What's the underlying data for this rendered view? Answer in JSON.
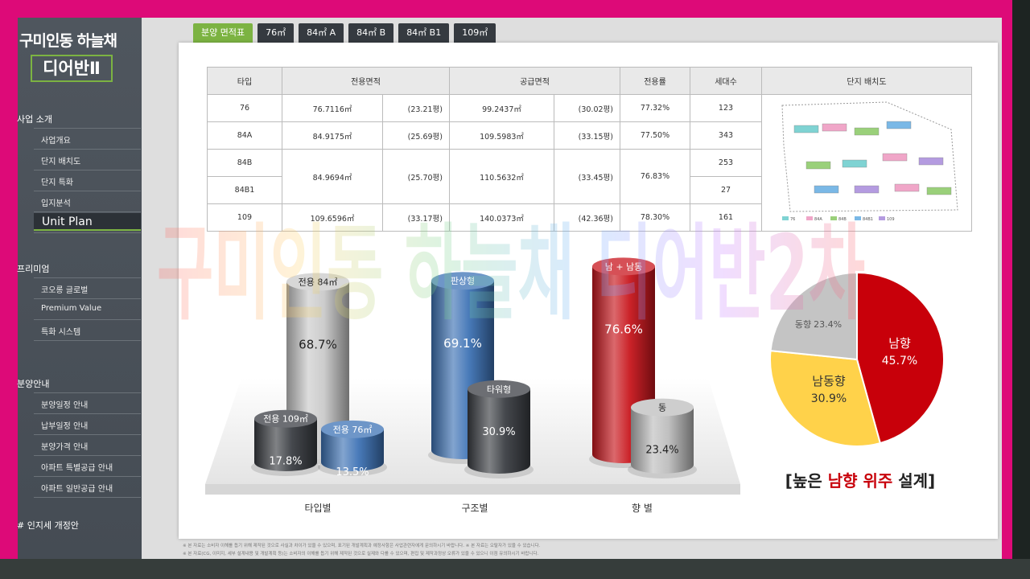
{
  "sidebar": {
    "brand": [
      "구미인동 하늘채",
      "디어반Ⅱ"
    ],
    "sections": [
      {
        "title": "사업 소개",
        "items": [
          "사업개요",
          "단지 배치도",
          "단지 특화",
          "입지분석",
          "Unit Plan"
        ]
      },
      {
        "title": "프리미엄",
        "items": [
          "코오롱 글로벌",
          "Premium Value",
          "특화 시스템"
        ]
      },
      {
        "title": "분양안내",
        "items": [
          "분양일정 안내",
          "납부일정 안내",
          "분양가격 안내",
          "아파트 특별공급 안내",
          "아파트 일반공급 안내"
        ]
      },
      {
        "title": "# 인지세 개정안",
        "items": []
      }
    ]
  },
  "tabs": [
    "분양 면적표",
    "76㎡",
    "84㎡ A",
    "84㎡ B",
    "84㎡ B1",
    "109㎡"
  ],
  "table": {
    "header": [
      "타입",
      "전용면적",
      "공급면적",
      "전용률",
      "세대수",
      "단지 배치도"
    ],
    "rows": [
      [
        "76",
        "76.7116㎡",
        "(23.21평)",
        "99.2437㎡",
        "(30.02평)",
        "77.32%",
        "123"
      ],
      [
        "84A",
        "84.9175㎡",
        "(25.69평)",
        "109.5983㎡",
        "(33.15평)",
        "77.50%",
        "343"
      ],
      [
        "84B",
        "84.9694㎡",
        "(25.70평)",
        "110.5632㎡",
        "(33.45평)",
        "76.83%",
        "253"
      ],
      [
        "84B1",
        "27"
      ],
      [
        "109",
        "109.6596㎡",
        "(33.17평)",
        "140.0373㎡",
        "(42.36평)",
        "78.30%",
        "161"
      ]
    ],
    "site_plan_legend": [
      "76",
      "84A",
      "84B",
      "84B1",
      "109"
    ]
  },
  "charts": [
    {
      "label": "타입별",
      "bars": [
        {
          "name": "전용 84㎡",
          "value": 68.7,
          "value_label": "68.7%",
          "color": "#c9c9c9"
        },
        {
          "name": "전용 109㎡",
          "value": 17.8,
          "value_label": "17.8%",
          "color": "#3b3e44"
        },
        {
          "name": "전용 76㎡",
          "value": 13.5,
          "value_label": "13.5%",
          "color": "#3e73b5"
        }
      ]
    },
    {
      "label": "구조별",
      "bars": [
        {
          "name": "판상형",
          "value": 69.1,
          "value_label": "69.1%",
          "color": "#3e73b5"
        },
        {
          "name": "타워형",
          "value": 30.9,
          "value_label": "30.9%",
          "color": "#3b3e44"
        }
      ]
    },
    {
      "label": "향 별",
      "bars": [
        {
          "name": "남 + 남동",
          "value": 76.6,
          "value_label": "76.6%",
          "color": "#c8161d"
        },
        {
          "name": "동",
          "value": 23.4,
          "value_label": "23.4%",
          "color": "#bdbdbd"
        }
      ]
    }
  ],
  "pie": {
    "slices": [
      {
        "name": "남향",
        "value": 45.7,
        "value_label": "45.7%",
        "color": "#c8000a"
      },
      {
        "name": "남동향",
        "value": 30.9,
        "value_label": "30.9%",
        "color": "#ffd24a"
      },
      {
        "name": "동향",
        "value": 23.4,
        "value_label": "23.4%",
        "color": "#c4c4c4"
      }
    ],
    "caption": [
      "[높은 ",
      "남향 위주",
      " 설계]"
    ]
  },
  "watermark": "구미인동 하늘채 디어반2차",
  "notes": [
    "※ 본 자료는 소비자 이해를 돕기 위해 제작된 것으로 사실과 차이가 있을 수 있으며, 표기된 개발계획과 예정사항은 사업관련자에게 문의하시기 바랍니다.   ※ 본 자료는 오탈자가 있을 수 있습니다.",
    "※ 본 자료(CG, 이미지, 세부 설계내용 및 개발계획 등)는 소비자의 이해를 돕기 위해 제작된 것으로 실제와 다를 수 있으며, 편집 및 제작과정상 오류가 있을 수 있으니 이점 유의하시기 바랍니다."
  ]
}
